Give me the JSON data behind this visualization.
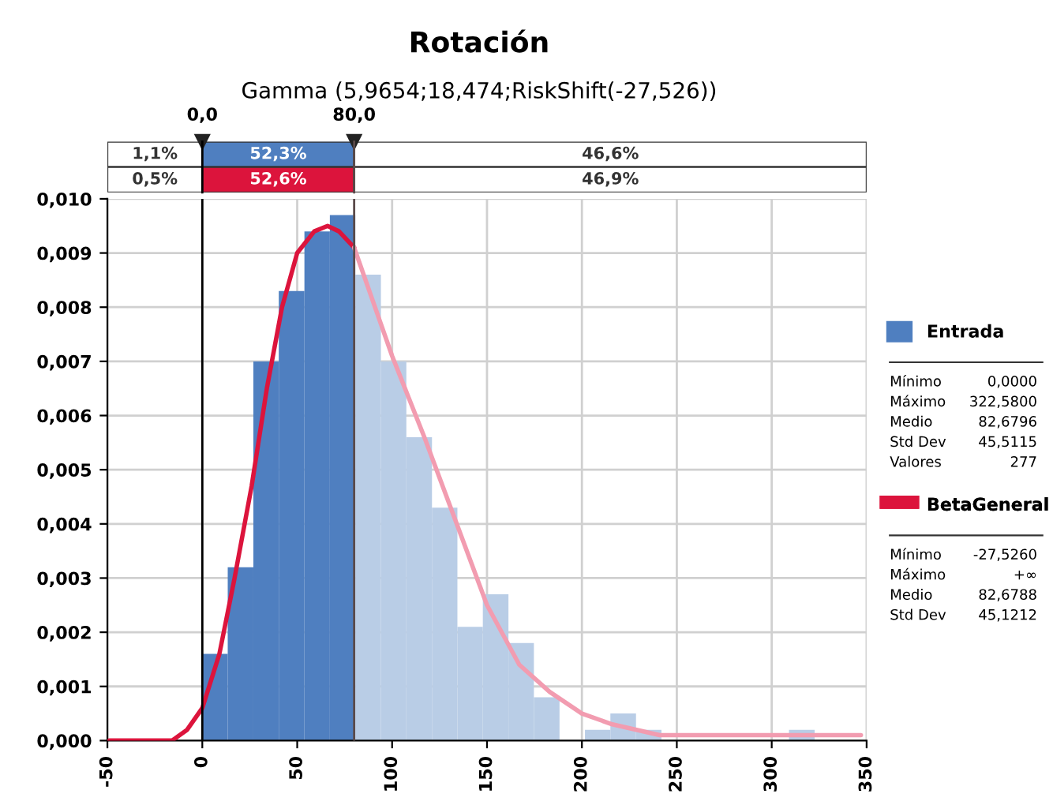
{
  "chart_data": {
    "type": "histogram",
    "title": "Rotación",
    "subtitle": "Gamma (5,9654;18,474;RiskShift(-27,526))",
    "bins": [
      0,
      13.4,
      26.9,
      40.3,
      53.8,
      67.2,
      80.6,
      94.1,
      107.5,
      121,
      134.4,
      147.8,
      161.3,
      174.7,
      188.2,
      201.6,
      215,
      228.5,
      241.9,
      255.4,
      268.8,
      282.3,
      295.7,
      309.1,
      322.6
    ],
    "series": [
      {
        "name": "Entrada",
        "color": "#4f7fc0",
        "colors": [
          "#4f7fc0",
          "#4f7fc0",
          "#4f7fc0",
          "#4f7fc0",
          "#4f7fc0",
          "#4f7fc0",
          "#b9cde6",
          "#b9cde6",
          "#b9cde6",
          "#b9cde6",
          "#b9cde6",
          "#b9cde6",
          "#b9cde6",
          "#b9cde6",
          "#b9cde6",
          "#b9cde6",
          "#b9cde6",
          "#b9cde6",
          "#b9cde6",
          "#b9cde6",
          "#b9cde6",
          "#b9cde6",
          "#b9cde6",
          "#b9cde6"
        ],
        "values": [
          0.0016,
          0.0032,
          0.007,
          0.0083,
          0.0094,
          0.0097,
          0.0086,
          0.007,
          0.0056,
          0.0043,
          0.0021,
          0.0027,
          0.0018,
          0.0008,
          0,
          0.0002,
          0.0005,
          0.0002,
          0,
          0,
          0,
          0,
          0,
          0.0002
        ]
      },
      {
        "name": "BetaGeneral",
        "type": "line",
        "color": "#dc143c",
        "x": [
          -49,
          -16,
          -8,
          0,
          9,
          17,
          26,
          34,
          42,
          50,
          59,
          66,
          72,
          80
        ],
        "values": [
          0,
          0,
          0.0002,
          0.0006,
          0.0016,
          0.003,
          0.0047,
          0.0065,
          0.008,
          0.009,
          0.0094,
          0.0095,
          0.0094,
          0.0091
        ]
      },
      {
        "type": "line",
        "color": "#f29cb0",
        "x": [
          80,
          92,
          100,
          117,
          133,
          150,
          167,
          183,
          200,
          216,
          241,
          347
        ],
        "values": [
          0.0091,
          0.0079,
          0.0071,
          0.0056,
          0.0041,
          0.0025,
          0.0014,
          0.0009,
          0.0005,
          0.0003,
          0.0001,
          0.0001
        ]
      }
    ],
    "xlim": [
      -50,
      350
    ],
    "xticks": [
      -50,
      0,
      50,
      100,
      150,
      200,
      250,
      300,
      350
    ],
    "ylim": [
      0,
      0.01
    ],
    "yticks": [
      {
        "value": 0,
        "label": "0,000"
      },
      {
        "value": 0.001,
        "label": "0,001"
      },
      {
        "value": 0.002,
        "label": "0,002"
      },
      {
        "value": 0.003,
        "label": "0,003"
      },
      {
        "value": 0.004,
        "label": "0,004"
      },
      {
        "value": 0.005,
        "label": "0,005"
      },
      {
        "value": 0.006,
        "label": "0,006"
      },
      {
        "value": 0.007,
        "label": "0,007"
      },
      {
        "value": 0.008,
        "label": "0,008"
      },
      {
        "value": 0.009,
        "label": "0,009"
      },
      {
        "value": 0.01,
        "label": "0,010"
      }
    ],
    "ref_lines": [
      {
        "axis": "x",
        "value": 0,
        "label": "0,0",
        "color": "#000000"
      },
      {
        "axis": "x",
        "value": 80,
        "label": "80,0",
        "color": "#5a4a4a"
      }
    ],
    "grid": true,
    "legend": "right",
    "annotations": [
      "1,1%",
      "52,3%",
      "46,6%",
      "0,5%",
      "52,6%",
      "46,9%",
      "Mínimo",
      "Máximo",
      "Medio",
      "Std Dev",
      "Valores",
      "0,0000",
      "322,5800",
      "82,6796",
      "45,5115",
      "277",
      "Mínimo",
      "Máximo",
      "Medio",
      "Std Dev",
      "-27,5260",
      "+∞",
      "82,6788",
      "45,1212"
    ]
  }
}
